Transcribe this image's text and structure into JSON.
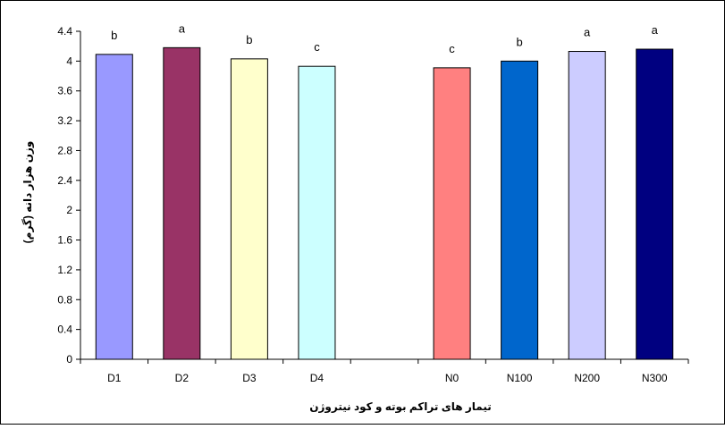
{
  "chart_data": {
    "type": "bar",
    "categories": [
      "D1",
      "D2",
      "D3",
      "D4",
      "",
      "N0",
      "N100",
      "N200",
      "N300"
    ],
    "values": [
      4.09,
      4.18,
      4.03,
      3.93,
      null,
      3.91,
      4.0,
      4.13,
      4.16
    ],
    "letters": [
      "b",
      "a",
      "b",
      "c",
      "",
      "c",
      "b",
      "a",
      "a"
    ],
    "bar_colors": [
      "#9999ff",
      "#993366",
      "#ffffcc",
      "#ccffff",
      "",
      "#ff8080",
      "#0066cc",
      "#ccccff",
      "#000080"
    ],
    "title": "",
    "xlabel": "تیمار های تراکم بوته و کود نیتروژن",
    "ylabel": "وزن هزار دانه (گرم)",
    "ylim": [
      0,
      4.4
    ],
    "yticks": [
      0,
      0.4,
      0.8,
      1.2,
      1.6,
      2,
      2.4,
      2.8,
      3.2,
      3.6,
      4,
      4.4
    ],
    "grid": false,
    "legend": "none"
  }
}
